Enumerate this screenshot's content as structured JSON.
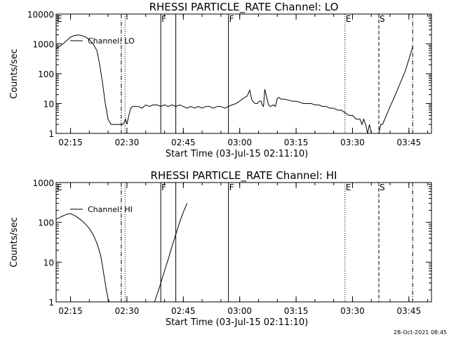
{
  "footer": {
    "date_stamp": "28-Oct-2021 08:45"
  },
  "chart_data": [
    {
      "type": "line",
      "title": "RHESSI PARTICLE_RATE Channel: LO",
      "xlabel": "Start Time (03-Jul-15 02:11:10)",
      "ylabel": "Counts/sec",
      "yscale": "log",
      "ylim": [
        1,
        10000
      ],
      "xlim": [
        "02:11:10",
        "03:51:00"
      ],
      "y_ticks": [
        "1",
        "10",
        "100",
        "1000",
        "10000"
      ],
      "x_ticks": [
        "02:15",
        "02:30",
        "02:45",
        "03:00",
        "03:15",
        "03:30",
        "03:45"
      ],
      "legend": {
        "position": "top-left",
        "entries": [
          "Channel: LO"
        ]
      },
      "markers": [
        {
          "label": "E",
          "time": "02:11:10",
          "style": "dashdot"
        },
        {
          "time": "02:28:30",
          "style": "dashdot"
        },
        {
          "time": "02:29:30",
          "style": "dotted"
        },
        {
          "label": "F",
          "time": "02:39:00",
          "style": "solid"
        },
        {
          "time": "02:43:00",
          "style": "solid"
        },
        {
          "label": "F",
          "time": "02:57:00",
          "style": "solid"
        },
        {
          "label": "E",
          "time": "03:28:00",
          "style": "dotted"
        },
        {
          "label": "S",
          "time": "03:37:00",
          "style": "dashed"
        },
        {
          "time": "03:46:00",
          "style": "dashdot"
        }
      ],
      "series": [
        {
          "name": "Channel: LO",
          "x": [
            "02:11:10",
            "02:12:00",
            "02:13:00",
            "02:14:00",
            "02:15:00",
            "02:16:00",
            "02:17:00",
            "02:18:00",
            "02:19:00",
            "02:20:00",
            "02:21:00",
            "02:22:00",
            "02:22:45",
            "02:23:30",
            "02:24:15",
            "02:25:00",
            "02:25:45",
            "02:26:30",
            "02:27:00",
            "02:27:30",
            "02:28:00",
            "02:29:00",
            "02:29:40",
            "02:30:00",
            "02:30:30",
            "02:31:00",
            "02:31:30",
            "02:32:00",
            "02:33:00",
            "02:34:00",
            "02:35:00",
            "02:36:00",
            "02:37:00",
            "02:38:00",
            "02:39:00",
            "02:40:00",
            "02:41:00",
            "02:42:00",
            "02:43:00",
            "02:44:00",
            "02:45:00",
            "02:46:00",
            "02:47:00",
            "02:48:00",
            "02:49:00",
            "02:50:00",
            "02:51:00",
            "02:52:00",
            "02:53:00",
            "02:54:00",
            "02:55:00",
            "02:56:00",
            "02:57:00",
            "02:58:00",
            "02:59:00",
            "03:00:00",
            "03:01:00",
            "03:02:00",
            "03:02:40",
            "03:03:10",
            "03:03:40",
            "03:04:10",
            "03:04:40",
            "03:05:10",
            "03:05:40",
            "03:06:00",
            "03:06:20",
            "03:06:40",
            "03:07:10",
            "03:07:40",
            "03:08:10",
            "03:09:00",
            "03:09:30",
            "03:10:00",
            "03:10:30",
            "03:11:00",
            "03:12:00",
            "03:13:00",
            "03:14:00",
            "03:15:00",
            "03:16:00",
            "03:17:00",
            "03:18:00",
            "03:19:00",
            "03:20:00",
            "03:21:00",
            "03:22:00",
            "03:23:00",
            "03:24:00",
            "03:25:00",
            "03:26:00",
            "03:27:00",
            "03:28:00",
            "03:29:00",
            "03:30:00",
            "03:31:00",
            "03:32:00",
            "03:32:30",
            "03:33:00",
            "03:33:30",
            "03:34:00",
            "03:34:30",
            "03:35:00",
            "03:35:30",
            "03:36:00",
            "03:36:30",
            "03:37:00",
            "03:37:30",
            "03:38:00",
            "03:39:00",
            "03:40:00",
            "03:41:00",
            "03:42:00",
            "03:43:00",
            "03:44:00",
            "03:45:00",
            "03:46:00"
          ],
          "values": [
            700,
            800,
            1000,
            1300,
            1700,
            1900,
            2000,
            1900,
            1700,
            1400,
            1000,
            600,
            200,
            50,
            10,
            3,
            2,
            2,
            2,
            2,
            2,
            2,
            3,
            2,
            4,
            7,
            8,
            8,
            8,
            7,
            9,
            8,
            9,
            9,
            8,
            9,
            8,
            9,
            8,
            9,
            8,
            7,
            8,
            7,
            8,
            7,
            8,
            8,
            7,
            8,
            8,
            7,
            8,
            9,
            10,
            12,
            15,
            18,
            28,
            14,
            11,
            10,
            10,
            12,
            12,
            9,
            8,
            30,
            16,
            9,
            8,
            9,
            8,
            15,
            16,
            14,
            14,
            13,
            12,
            12,
            11,
            10,
            10,
            10,
            9,
            9,
            8,
            8,
            7,
            7,
            6,
            6,
            5,
            4,
            4,
            3,
            3,
            2,
            3,
            2,
            1,
            2,
            1,
            1,
            1,
            1,
            1,
            2,
            2,
            4,
            8,
            15,
            30,
            60,
            120,
            300,
            800
          ]
        }
      ]
    },
    {
      "type": "line",
      "title": "RHESSI PARTICLE_RATE Channel: HI",
      "xlabel": "Start Time (03-Jul-15 02:11:10)",
      "ylabel": "Counts/sec",
      "yscale": "log",
      "ylim": [
        1,
        1000
      ],
      "xlim": [
        "02:11:10",
        "03:51:00"
      ],
      "y_ticks": [
        "1",
        "10",
        "100",
        "1000"
      ],
      "x_ticks": [
        "02:15",
        "02:30",
        "02:45",
        "03:00",
        "03:15",
        "03:30",
        "03:45"
      ],
      "legend": {
        "position": "top-left",
        "entries": [
          "Channel: HI"
        ]
      },
      "markers": [
        {
          "label": "E",
          "time": "02:11:10",
          "style": "dashdot"
        },
        {
          "time": "02:28:30",
          "style": "dashdot"
        },
        {
          "time": "02:29:30",
          "style": "dotted"
        },
        {
          "label": "F",
          "time": "02:39:00",
          "style": "solid"
        },
        {
          "time": "02:43:00",
          "style": "solid"
        },
        {
          "label": "F",
          "time": "02:57:00",
          "style": "solid"
        },
        {
          "label": "E",
          "time": "03:28:00",
          "style": "dotted"
        },
        {
          "label": "S",
          "time": "03:37:00",
          "style": "dashed"
        },
        {
          "time": "03:46:00",
          "style": "dashdot"
        }
      ],
      "series": [
        {
          "name": "Channel: HI",
          "x": [
            "02:11:10",
            "02:12:00",
            "02:13:00",
            "02:14:00",
            "02:15:00",
            "02:16:00",
            "02:17:00",
            "02:18:00",
            "02:19:00",
            "02:20:00",
            "02:21:00",
            "02:22:00",
            "02:23:00",
            "02:23:30",
            "02:24:00",
            "02:24:30",
            "02:25:00",
            "02:25:20",
            "02:37:20",
            "02:38:00",
            "02:39:00",
            "02:40:00",
            "02:41:00",
            "02:42:00",
            "02:43:00",
            "02:44:00",
            "02:45:00",
            "02:46:00"
          ],
          "values": [
            120,
            130,
            145,
            160,
            165,
            150,
            130,
            110,
            90,
            70,
            50,
            30,
            15,
            8,
            4,
            2,
            1.2,
            1,
            1,
            1.5,
            3,
            6,
            12,
            25,
            50,
            100,
            180,
            300
          ]
        }
      ]
    }
  ]
}
